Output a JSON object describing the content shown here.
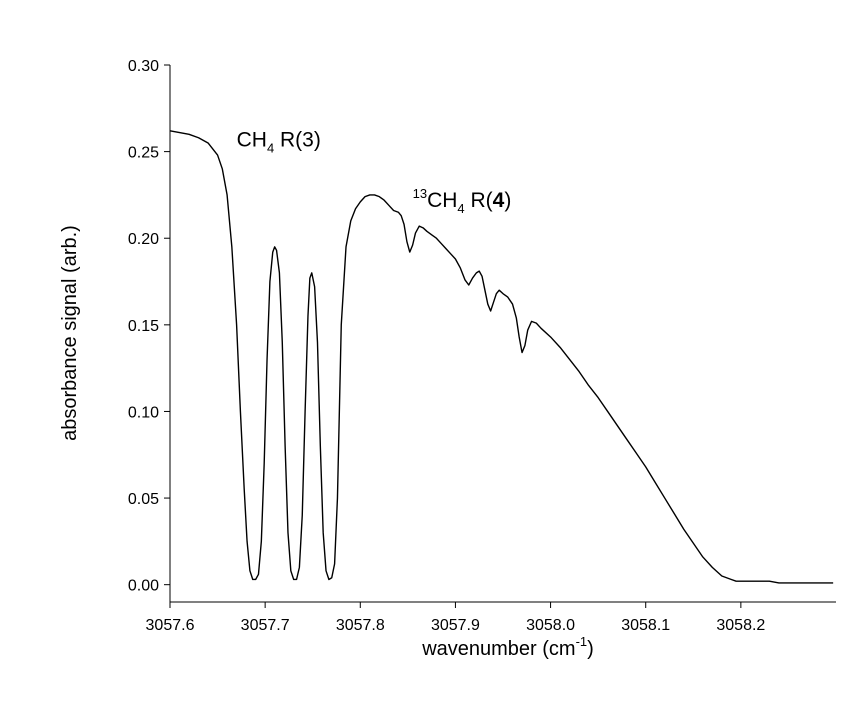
{
  "chart_data": {
    "type": "line",
    "title": "",
    "xlabel": {
      "text": "wavenumber (cm",
      "sup": "-1",
      "close": ")"
    },
    "ylabel": "absorbance signal (arb.)",
    "xlim": [
      3057.6,
      3058.3
    ],
    "ylim": [
      -0.01,
      0.3
    ],
    "xticks": [
      3057.6,
      3057.7,
      3057.8,
      3057.9,
      3058.0,
      3058.1,
      3058.2
    ],
    "xtick_labels": [
      "3057.6",
      "3057.7",
      "3057.8",
      "3057.9",
      "3058.0",
      "3058.1",
      "3058.2"
    ],
    "yticks": [
      0.0,
      0.05,
      0.1,
      0.15,
      0.2,
      0.25,
      0.3
    ],
    "ytick_labels": [
      "0.00",
      "0.05",
      "0.10",
      "0.15",
      "0.20",
      "0.25",
      "0.30"
    ],
    "grid": false,
    "legend": "none",
    "line_color": "#000000",
    "annotations": [
      {
        "id": "ch4",
        "main": "CH",
        "sub": "4",
        "tail": " R(3)",
        "bold": "",
        "end": "",
        "x": 3057.67,
        "y": 0.253
      },
      {
        "id": "c13",
        "pre": "13",
        "main": "CH",
        "sub": "4",
        "tail": " R(",
        "bold": "4",
        "end": ")",
        "x": 3057.855,
        "y": 0.218
      }
    ],
    "series": [
      {
        "x": [
          3057.6,
          3057.61,
          3057.62,
          3057.63,
          3057.64,
          3057.65,
          3057.655,
          3057.66,
          3057.665,
          3057.67,
          3057.674,
          3057.678,
          3057.681,
          3057.684,
          3057.687,
          3057.69,
          3057.693,
          3057.696,
          3057.699,
          3057.702,
          3057.705,
          3057.708,
          3057.71,
          3057.712,
          3057.715,
          3057.718,
          3057.721,
          3057.724,
          3057.727,
          3057.73,
          3057.733,
          3057.736,
          3057.739,
          3057.742,
          3057.745,
          3057.747,
          3057.749,
          3057.752,
          3057.755,
          3057.758,
          3057.761,
          3057.764,
          3057.767,
          3057.77,
          3057.773,
          3057.776,
          3057.78,
          3057.785,
          3057.79,
          3057.795,
          3057.8,
          3057.805,
          3057.81,
          3057.815,
          3057.82,
          3057.825,
          3057.83,
          3057.835,
          3057.84,
          3057.843,
          3057.846,
          3057.849,
          3057.852,
          3057.855,
          3057.858,
          3057.862,
          3057.866,
          3057.87,
          3057.875,
          3057.88,
          3057.885,
          3057.89,
          3057.895,
          3057.9,
          3057.905,
          3057.91,
          3057.914,
          3057.918,
          3057.922,
          3057.925,
          3057.928,
          3057.931,
          3057.934,
          3057.937,
          3057.94,
          3057.943,
          3057.946,
          3057.95,
          3057.955,
          3057.96,
          3057.964,
          3057.967,
          3057.97,
          3057.973,
          3057.976,
          3057.98,
          3057.985,
          3057.99,
          3058.0,
          3058.01,
          3058.02,
          3058.03,
          3058.04,
          3058.05,
          3058.06,
          3058.07,
          3058.08,
          3058.09,
          3058.1,
          3058.11,
          3058.12,
          3058.13,
          3058.14,
          3058.15,
          3058.16,
          3058.17,
          3058.18,
          3058.19,
          3058.195,
          3058.2,
          3058.204,
          3058.208,
          3058.212,
          3058.22,
          3058.23,
          3058.24,
          3058.25,
          3058.26,
          3058.27,
          3058.28,
          3058.29,
          3058.297
        ],
        "y": [
          0.262,
          0.261,
          0.26,
          0.258,
          0.255,
          0.248,
          0.24,
          0.225,
          0.195,
          0.15,
          0.1,
          0.055,
          0.025,
          0.008,
          0.003,
          0.003,
          0.006,
          0.025,
          0.07,
          0.13,
          0.175,
          0.192,
          0.195,
          0.193,
          0.18,
          0.14,
          0.08,
          0.03,
          0.008,
          0.003,
          0.003,
          0.01,
          0.04,
          0.1,
          0.155,
          0.177,
          0.18,
          0.172,
          0.14,
          0.08,
          0.03,
          0.008,
          0.003,
          0.004,
          0.012,
          0.05,
          0.15,
          0.195,
          0.21,
          0.217,
          0.221,
          0.224,
          0.225,
          0.225,
          0.224,
          0.222,
          0.219,
          0.216,
          0.215,
          0.213,
          0.208,
          0.198,
          0.192,
          0.196,
          0.203,
          0.207,
          0.206,
          0.204,
          0.202,
          0.2,
          0.197,
          0.194,
          0.191,
          0.188,
          0.183,
          0.176,
          0.173,
          0.177,
          0.18,
          0.181,
          0.178,
          0.17,
          0.162,
          0.158,
          0.163,
          0.168,
          0.17,
          0.168,
          0.166,
          0.162,
          0.154,
          0.143,
          0.134,
          0.138,
          0.147,
          0.152,
          0.151,
          0.148,
          0.143,
          0.137,
          0.13,
          0.123,
          0.115,
          0.108,
          0.1,
          0.092,
          0.084,
          0.076,
          0.068,
          0.059,
          0.05,
          0.041,
          0.032,
          0.024,
          0.016,
          0.01,
          0.005,
          0.003,
          0.002,
          0.002,
          0.002,
          0.002,
          0.002,
          0.002,
          0.002,
          0.001,
          0.001,
          0.001,
          0.001,
          0.001,
          0.001,
          0.001
        ]
      }
    ]
  }
}
